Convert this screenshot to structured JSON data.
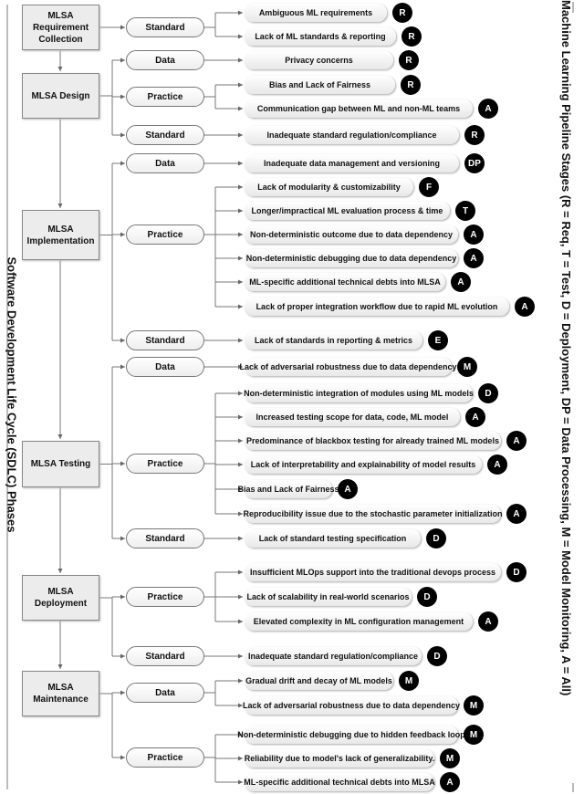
{
  "left_label": "Software Development Life Cycle (SDLC) Phases",
  "right_label": "Machine Learning Pipeline Stages (R = Req, T = Test, D = Deployment, DP = Data Processing, M = Model Monitoring, A = All)",
  "phases": [
    {
      "label": "MLSA Requirement Collection",
      "categories": [
        {
          "label": "Standard",
          "issues": [
            {
              "text": "Ambiguous ML requirements",
              "stage": "R"
            },
            {
              "text": "Lack of ML standards & reporting",
              "stage": "R"
            }
          ]
        }
      ]
    },
    {
      "label": "MLSA Design",
      "categories": [
        {
          "label": "Data",
          "issues": [
            {
              "text": "Privacy concerns",
              "stage": "R"
            }
          ]
        },
        {
          "label": "Practice",
          "issues": [
            {
              "text": "Bias and Lack of Fairness",
              "stage": "R"
            },
            {
              "text": "Communication gap between ML and non-ML teams",
              "stage": "A"
            }
          ]
        },
        {
          "label": "Standard",
          "issues": [
            {
              "text": "Inadequate standard regulation/compliance",
              "stage": "R"
            }
          ]
        }
      ]
    },
    {
      "label": "MLSA Implementation",
      "categories": [
        {
          "label": "Data",
          "issues": [
            {
              "text": "Inadequate data management and versioning",
              "stage": "DP"
            }
          ]
        },
        {
          "label": "Practice",
          "issues": [
            {
              "text": "Lack of modularity & customizability",
              "stage": "F"
            },
            {
              "text": "Longer/impractical ML evaluation process & time",
              "stage": "T"
            },
            {
              "text": "Non-deterministic outcome due to data dependency",
              "stage": "A"
            },
            {
              "text": "Non-deterministic debugging due to data dependency",
              "stage": "A"
            },
            {
              "text": "ML-specific additional technical debts into MLSA",
              "stage": "A"
            },
            {
              "text": "Lack of proper integration workflow due to rapid ML evolution",
              "stage": "A"
            }
          ]
        },
        {
          "label": "Standard",
          "issues": [
            {
              "text": "Lack of standards in reporting & metrics",
              "stage": "E"
            }
          ]
        }
      ]
    },
    {
      "label": "MLSA Testing",
      "categories": [
        {
          "label": "Data",
          "issues": [
            {
              "text": "Lack of adversarial robustness due to data dependency",
              "stage": "M"
            }
          ]
        },
        {
          "label": "Practice",
          "issues": [
            {
              "text": "Non-deterministic integration of modules using ML models",
              "stage": "D"
            },
            {
              "text": "Increased testing scope for data, code, ML model",
              "stage": "A"
            },
            {
              "text": "Predominance of blackbox testing for already trained ML models",
              "stage": "A"
            },
            {
              "text": "Lack of interpretability and explainability of model results",
              "stage": "A"
            },
            {
              "text": "Bias and Lack of Fairness",
              "stage": "A"
            },
            {
              "text": "Reproducibility issue due to the stochastic parameter initialization",
              "stage": "A"
            }
          ]
        },
        {
          "label": "Standard",
          "issues": [
            {
              "text": "Lack of standard testing specification",
              "stage": "D"
            }
          ]
        }
      ]
    },
    {
      "label": "MLSA Deployment",
      "categories": [
        {
          "label": "Practice",
          "issues": [
            {
              "text": "Insufficient MLOps support into the traditional devops process",
              "stage": "D"
            },
            {
              "text": "Lack of scalability in real-world scenarios",
              "stage": "D"
            },
            {
              "text": "Elevated complexity in ML configuration management",
              "stage": "A"
            }
          ]
        },
        {
          "label": "Standard",
          "issues": [
            {
              "text": "Inadequate standard regulation/compliance",
              "stage": "D"
            }
          ]
        }
      ]
    },
    {
      "label": "MLSA Maintenance",
      "categories": [
        {
          "label": "Data",
          "issues": [
            {
              "text": "Gradual drift and decay of ML models",
              "stage": "M"
            },
            {
              "text": "Lack of adversarial robustness due to data dependency",
              "stage": "M"
            }
          ]
        },
        {
          "label": "Practice",
          "issues": [
            {
              "text": "Non-deterministic debugging due to hidden feedback loop",
              "stage": "M"
            },
            {
              "text": "Reliability due to model's lack of generalizability.",
              "stage": "M"
            },
            {
              "text": "ML-specific additional technical debts into MLSA",
              "stage": "A"
            }
          ]
        }
      ]
    }
  ]
}
